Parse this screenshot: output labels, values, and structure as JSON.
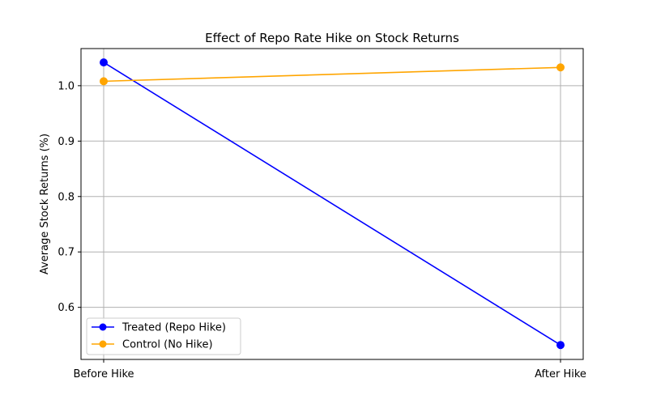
{
  "chart_data": {
    "type": "line",
    "title": "Effect of Repo Rate Hike on Stock Returns",
    "xlabel": "",
    "ylabel": "Average Stock Returns (%)",
    "categories": [
      "Before Hike",
      "After Hike"
    ],
    "ylim": [
      0.506,
      1.067
    ],
    "yticks": [
      0.6,
      0.7,
      0.8,
      0.9,
      1.0
    ],
    "ytick_labels": [
      "0.6",
      "0.7",
      "0.8",
      "0.9",
      "1.0"
    ],
    "grid": true,
    "legend_position": "lower-left",
    "series": [
      {
        "name": "Treated (Repo Hike)",
        "values": [
          1.042,
          0.532
        ],
        "color": "#0000ff",
        "marker": "circle"
      },
      {
        "name": "Control (No Hike)",
        "values": [
          1.008,
          1.033
        ],
        "color": "#ffa500",
        "marker": "circle"
      }
    ]
  }
}
